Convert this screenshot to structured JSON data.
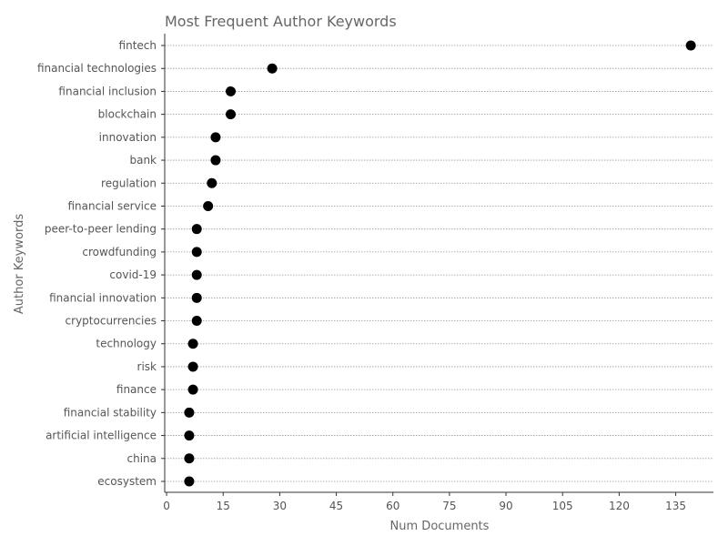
{
  "chart_data": {
    "type": "scatter",
    "title": "Most Frequent Author Keywords",
    "xlabel": "Num Documents",
    "ylabel": "Author Keywords",
    "categories": [
      "fintech",
      "financial technologies",
      "financial inclusion",
      "blockchain",
      "innovation",
      "bank",
      "regulation",
      "financial service",
      "peer-to-peer lending",
      "crowdfunding",
      "covid-19",
      "financial innovation",
      "cryptocurrencies",
      "technology",
      "risk",
      "finance",
      "financial stability",
      "artificial intelligence",
      "china",
      "ecosystem"
    ],
    "values": [
      139,
      28,
      17,
      17,
      13,
      13,
      12,
      11,
      8,
      8,
      8,
      8,
      8,
      7,
      7,
      7,
      6,
      6,
      6,
      6
    ],
    "xlim": [
      -0.5,
      145
    ],
    "xticks": [
      0,
      15,
      30,
      45,
      60,
      75,
      90,
      105,
      120,
      135
    ],
    "grid": "horizontal dotted",
    "marker_color": "#000000",
    "grid_color": "#999999",
    "text_color": "#666666"
  }
}
